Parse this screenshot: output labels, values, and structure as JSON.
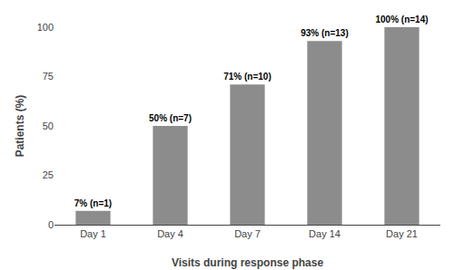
{
  "chart_data": {
    "type": "bar",
    "categories": [
      "Day 1",
      "Day 4",
      "Day 7",
      "Day 14",
      "Day 21"
    ],
    "values": [
      7,
      50,
      71,
      93,
      100
    ],
    "value_labels": [
      "7% (n=1)",
      "50% (n=7)",
      "71% (n=10)",
      "93% (n=13)",
      "100% (n=14)"
    ],
    "data_labels": true,
    "color": "#8c8c8c",
    "xlabel": "Visits during response phase",
    "ylabel": "Patients (%)",
    "ylim": [
      0,
      100
    ],
    "yticks": [
      0,
      25,
      50,
      75,
      100
    ],
    "grid": false
  }
}
